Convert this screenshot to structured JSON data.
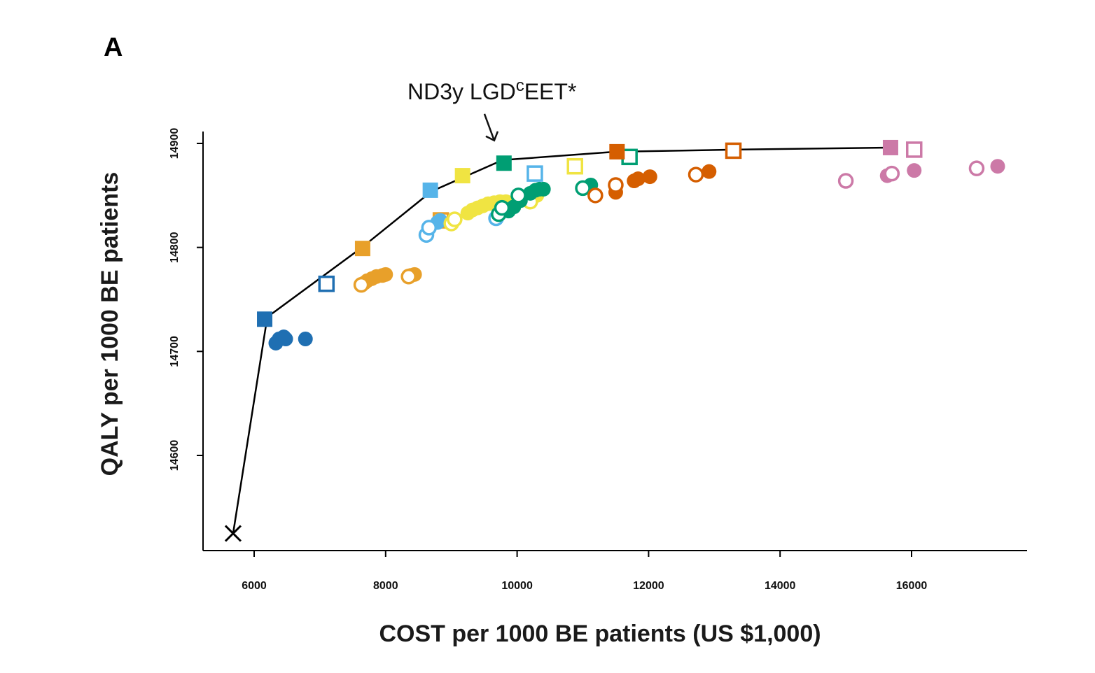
{
  "chart_data": {
    "type": "scatter",
    "panel_label": "A",
    "title": "",
    "xlabel": "COST per 1000 BE patients (US $1,000)",
    "ylabel": "QALY per 1000 BE patients",
    "xlim": [
      5300,
      17800
    ],
    "ylim": [
      14510,
      14912
    ],
    "x_ticks": [
      6000,
      8000,
      10000,
      12000,
      14000,
      16000
    ],
    "y_ticks": [
      14600,
      14700,
      14800,
      14900
    ],
    "grid": false,
    "legend": "none",
    "annotation": {
      "text_main": "ND3y LGD",
      "text_sup": "c",
      "text_tail": "EET*",
      "target": [
        9780,
        14884
      ]
    },
    "frontier": {
      "name": "",
      "color": "#000000",
      "x": [
        5680,
        6200,
        7640,
        8700,
        9780,
        11500,
        13300,
        15700
      ],
      "y": [
        14525,
        14733,
        14800,
        14854,
        14884,
        14892,
        14894,
        14896
      ]
    },
    "reference_point": {
      "x": 5680,
      "y": 14525,
      "marker": "x",
      "color": "#000000"
    },
    "series": [
      {
        "name": "",
        "color": "#1f6fb2",
        "marker": "filled-square",
        "x": [
          6160
        ],
        "y": [
          14731
        ]
      },
      {
        "name": "",
        "color": "#1f6fb2",
        "marker": "filled-circle",
        "x": [
          6330,
          6380,
          6450,
          6480,
          6780
        ],
        "y": [
          14708,
          14712,
          14714,
          14712,
          14712
        ]
      },
      {
        "name": "",
        "color": "#1f6fb2",
        "marker": "open-square",
        "x": [
          7100
        ],
        "y": [
          14765
        ]
      },
      {
        "name": "",
        "color": "#e8a02a",
        "marker": "filled-square",
        "x": [
          7650
        ],
        "y": [
          14799
        ]
      },
      {
        "name": "",
        "color": "#e8a02a",
        "marker": "filled-circle",
        "x": [
          7680,
          7720,
          7790,
          7860,
          7950,
          8000,
          8380,
          8440
        ],
        "y": [
          14766,
          14768,
          14770,
          14772,
          14773,
          14774,
          14773,
          14774
        ]
      },
      {
        "name": "",
        "color": "#e8a02a",
        "marker": "open-circle",
        "x": [
          7630,
          8350
        ],
        "y": [
          14764,
          14772
        ]
      },
      {
        "name": "",
        "color": "#e8a02a",
        "marker": "open-square",
        "x": [
          8840
        ],
        "y": [
          14826
        ]
      },
      {
        "name": "",
        "color": "#56b4e9",
        "marker": "filled-square",
        "x": [
          8680
        ],
        "y": [
          14855
        ]
      },
      {
        "name": "",
        "color": "#56b4e9",
        "marker": "filled-circle",
        "x": [
          8790,
          8830
        ],
        "y": [
          14824,
          14826
        ]
      },
      {
        "name": "",
        "color": "#56b4e9",
        "marker": "open-circle",
        "x": [
          8620,
          8660,
          9680
        ],
        "y": [
          14812,
          14819,
          14828
        ]
      },
      {
        "name": "",
        "color": "#56b4e9",
        "marker": "open-square",
        "x": [
          10270
        ],
        "y": [
          14871
        ]
      },
      {
        "name": "",
        "color": "#f0e442",
        "marker": "filled-square",
        "x": [
          9170
        ],
        "y": [
          14869
        ]
      },
      {
        "name": "",
        "color": "#f0e442",
        "marker": "filled-circle",
        "x": [
          9250,
          9320,
          9400,
          9480,
          9560,
          9650,
          9740,
          9830,
          10300
        ],
        "y": [
          14833,
          14836,
          14838,
          14840,
          14842,
          14843,
          14844,
          14844,
          14850
        ]
      },
      {
        "name": "",
        "color": "#f0e442",
        "marker": "open-circle",
        "x": [
          9000,
          9050,
          10200
        ],
        "y": [
          14823,
          14827,
          14844
        ]
      },
      {
        "name": "",
        "color": "#f0e442",
        "marker": "open-square",
        "x": [
          10880
        ],
        "y": [
          14878
        ]
      },
      {
        "name": "",
        "color": "#009e73",
        "marker": "filled-square",
        "x": [
          9800
        ],
        "y": [
          14881
        ]
      },
      {
        "name": "",
        "color": "#009e73",
        "marker": "filled-circle",
        "x": [
          9870,
          9950,
          10050,
          10200,
          10280,
          10340,
          10400,
          11120
        ],
        "y": [
          14835,
          14839,
          14845,
          14852,
          14855,
          14856,
          14856,
          14860
        ]
      },
      {
        "name": "",
        "color": "#009e73",
        "marker": "open-circle",
        "x": [
          9720,
          9770,
          10020,
          11000
        ],
        "y": [
          14832,
          14838,
          14850,
          14857
        ]
      },
      {
        "name": "",
        "color": "#009e73",
        "marker": "open-square",
        "x": [
          11710
        ],
        "y": [
          14887
        ]
      },
      {
        "name": "",
        "color": "#d55e00",
        "marker": "filled-square",
        "x": [
          11520
        ],
        "y": [
          14892
        ]
      },
      {
        "name": "",
        "color": "#d55e00",
        "marker": "filled-circle",
        "x": [
          11500,
          11780,
          11840,
          12020,
          12920
        ],
        "y": [
          14853,
          14864,
          14866,
          14868,
          14873
        ]
      },
      {
        "name": "",
        "color": "#d55e00",
        "marker": "open-circle",
        "x": [
          11190,
          11500,
          12720
        ],
        "y": [
          14850,
          14860,
          14870
        ]
      },
      {
        "name": "",
        "color": "#d55e00",
        "marker": "open-square",
        "x": [
          13290
        ],
        "y": [
          14893
        ]
      },
      {
        "name": "",
        "color": "#cc79a7",
        "marker": "filled-square",
        "x": [
          15680
        ],
        "y": [
          14896
        ]
      },
      {
        "name": "",
        "color": "#cc79a7",
        "marker": "filled-circle",
        "x": [
          15630,
          16040,
          17310
        ],
        "y": [
          14869,
          14874,
          14878
        ]
      },
      {
        "name": "",
        "color": "#cc79a7",
        "marker": "open-circle",
        "x": [
          15000,
          15700,
          16990
        ],
        "y": [
          14864,
          14871,
          14876
        ]
      },
      {
        "name": "",
        "color": "#cc79a7",
        "marker": "open-square",
        "x": [
          16040
        ],
        "y": [
          14894
        ]
      }
    ]
  }
}
